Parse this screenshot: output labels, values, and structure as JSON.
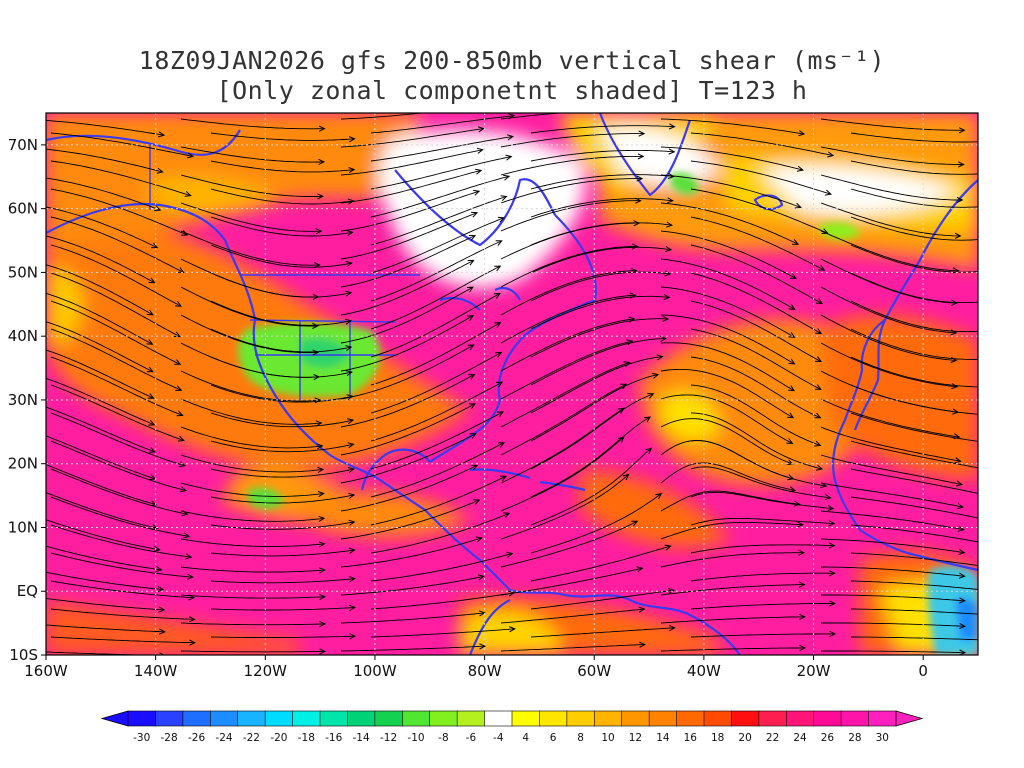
{
  "title": {
    "line1": "18Z09JAN2026 gfs 200-850mb vertical shear (ms⁻¹)",
    "line2": "[Only zonal componetnt shaded] T=123 h"
  },
  "map": {
    "lon_range": [
      -160,
      10
    ],
    "lat_range": [
      -10,
      75
    ],
    "grid": true,
    "field": "zonal component of 200-850mb vertical shear",
    "lon_ticks": [
      {
        "lon": -160,
        "label": "160W"
      },
      {
        "lon": -140,
        "label": "140W"
      },
      {
        "lon": -120,
        "label": "120W"
      },
      {
        "lon": -100,
        "label": "100W"
      },
      {
        "lon": -80,
        "label": "80W"
      },
      {
        "lon": -60,
        "label": "60W"
      },
      {
        "lon": -40,
        "label": "40W"
      },
      {
        "lon": -20,
        "label": "20W"
      },
      {
        "lon": 0,
        "label": "0"
      }
    ],
    "lat_ticks": [
      {
        "lat": 70,
        "label": "70N"
      },
      {
        "lat": 60,
        "label": "60N"
      },
      {
        "lat": 50,
        "label": "50N"
      },
      {
        "lat": 40,
        "label": "40N"
      },
      {
        "lat": 30,
        "label": "30N"
      },
      {
        "lat": 20,
        "label": "20N"
      },
      {
        "lat": 10,
        "label": "10N"
      },
      {
        "lat": 0,
        "label": "EQ"
      },
      {
        "lat": -10,
        "label": "10S"
      }
    ],
    "coast_color": "#3a3af0",
    "streamline_color": "#000000"
  },
  "colorbar": {
    "labels": [
      "-30",
      "-28",
      "-26",
      "-24",
      "-22",
      "-20",
      "-18",
      "-16",
      "-14",
      "-12",
      "-10",
      "-8",
      "-6",
      "-4",
      "4",
      "6",
      "8",
      "10",
      "12",
      "14",
      "16",
      "18",
      "20",
      "22",
      "24",
      "26",
      "28",
      "30"
    ],
    "colors": [
      "#1a0dff",
      "#2a41ff",
      "#1e6eff",
      "#1c8cff",
      "#18b4ff",
      "#00dcff",
      "#00f0e6",
      "#00e6aa",
      "#00d278",
      "#14d250",
      "#50e632",
      "#82f01e",
      "#b4f01e",
      "#ffffff",
      "#ffff00",
      "#ffe600",
      "#ffcd00",
      "#ffb400",
      "#ff9600",
      "#ff8200",
      "#ff6900",
      "#ff4b00",
      "#ff0f0f",
      "#ff1e50",
      "#ff1478",
      "#ff0a96",
      "#ff14aa",
      "#ff1ebe"
    ],
    "min_color": "#1a0dff",
    "max_color": "#ff1ebe"
  }
}
